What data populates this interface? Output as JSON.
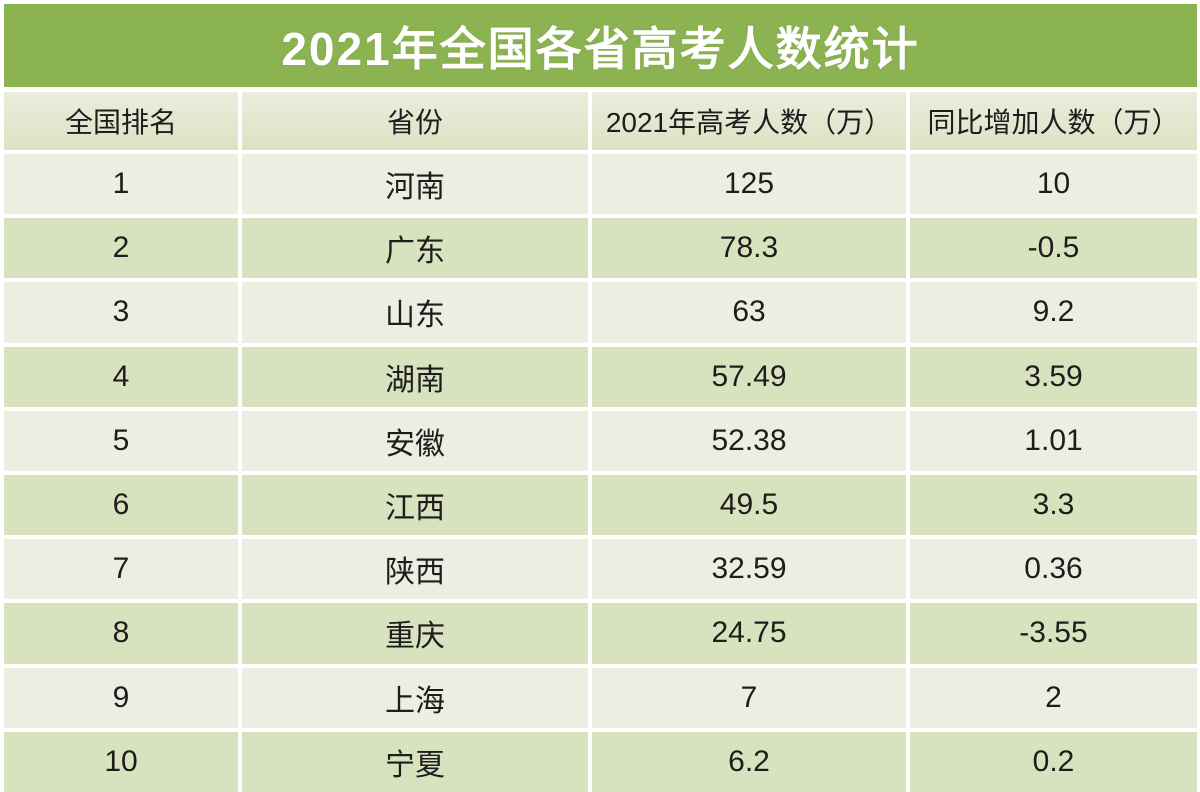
{
  "title": "2021年全国各省高考人数统计",
  "table": {
    "headers": [
      "全国排名",
      "省份",
      "2021年高考人数（万）",
      "同比增加人数（万）"
    ],
    "rows": [
      [
        "1",
        "河南",
        "125",
        "10"
      ],
      [
        "2",
        "广东",
        "78.3",
        "-0.5"
      ],
      [
        "3",
        "山东",
        "63",
        "9.2"
      ],
      [
        "4",
        "湖南",
        "57.49",
        "3.59"
      ],
      [
        "5",
        "安徽",
        "52.38",
        "1.01"
      ],
      [
        "6",
        "江西",
        "49.5",
        "3.3"
      ],
      [
        "7",
        "陕西",
        "32.59",
        "0.36"
      ],
      [
        "8",
        "重庆",
        "24.75",
        "-3.55"
      ],
      [
        "9",
        "上海",
        "7",
        "2"
      ],
      [
        "10",
        "宁夏",
        "6.2",
        "0.2"
      ]
    ]
  },
  "chart_data": {
    "type": "table",
    "title": "2021年全国各省高考人数统计",
    "columns": [
      "全国排名",
      "省份",
      "2021年高考人数（万）",
      "同比增加人数（万）"
    ],
    "rows": [
      {
        "rank": 1,
        "province": "河南",
        "candidates_wan": 125,
        "yoy_change_wan": 10
      },
      {
        "rank": 2,
        "province": "广东",
        "candidates_wan": 78.3,
        "yoy_change_wan": -0.5
      },
      {
        "rank": 3,
        "province": "山东",
        "candidates_wan": 63,
        "yoy_change_wan": 9.2
      },
      {
        "rank": 4,
        "province": "湖南",
        "candidates_wan": 57.49,
        "yoy_change_wan": 3.59
      },
      {
        "rank": 5,
        "province": "安徽",
        "candidates_wan": 52.38,
        "yoy_change_wan": 1.01
      },
      {
        "rank": 6,
        "province": "江西",
        "candidates_wan": 49.5,
        "yoy_change_wan": 3.3
      },
      {
        "rank": 7,
        "province": "陕西",
        "candidates_wan": 32.59,
        "yoy_change_wan": 0.36
      },
      {
        "rank": 8,
        "province": "重庆",
        "candidates_wan": 24.75,
        "yoy_change_wan": -3.55
      },
      {
        "rank": 9,
        "province": "上海",
        "candidates_wan": 7,
        "yoy_change_wan": 2
      },
      {
        "rank": 10,
        "province": "宁夏",
        "candidates_wan": 6.2,
        "yoy_change_wan": 0.2
      }
    ]
  },
  "colors": {
    "title_bar": "#8cb351",
    "title_text": "#ffffff",
    "header_top": "#ebecdd",
    "header_bottom": "#dce3c3",
    "row_light": "#edeee1",
    "row_green": "#d9e2be",
    "gutter": "#ffffff",
    "text": "#1d1d1d"
  }
}
